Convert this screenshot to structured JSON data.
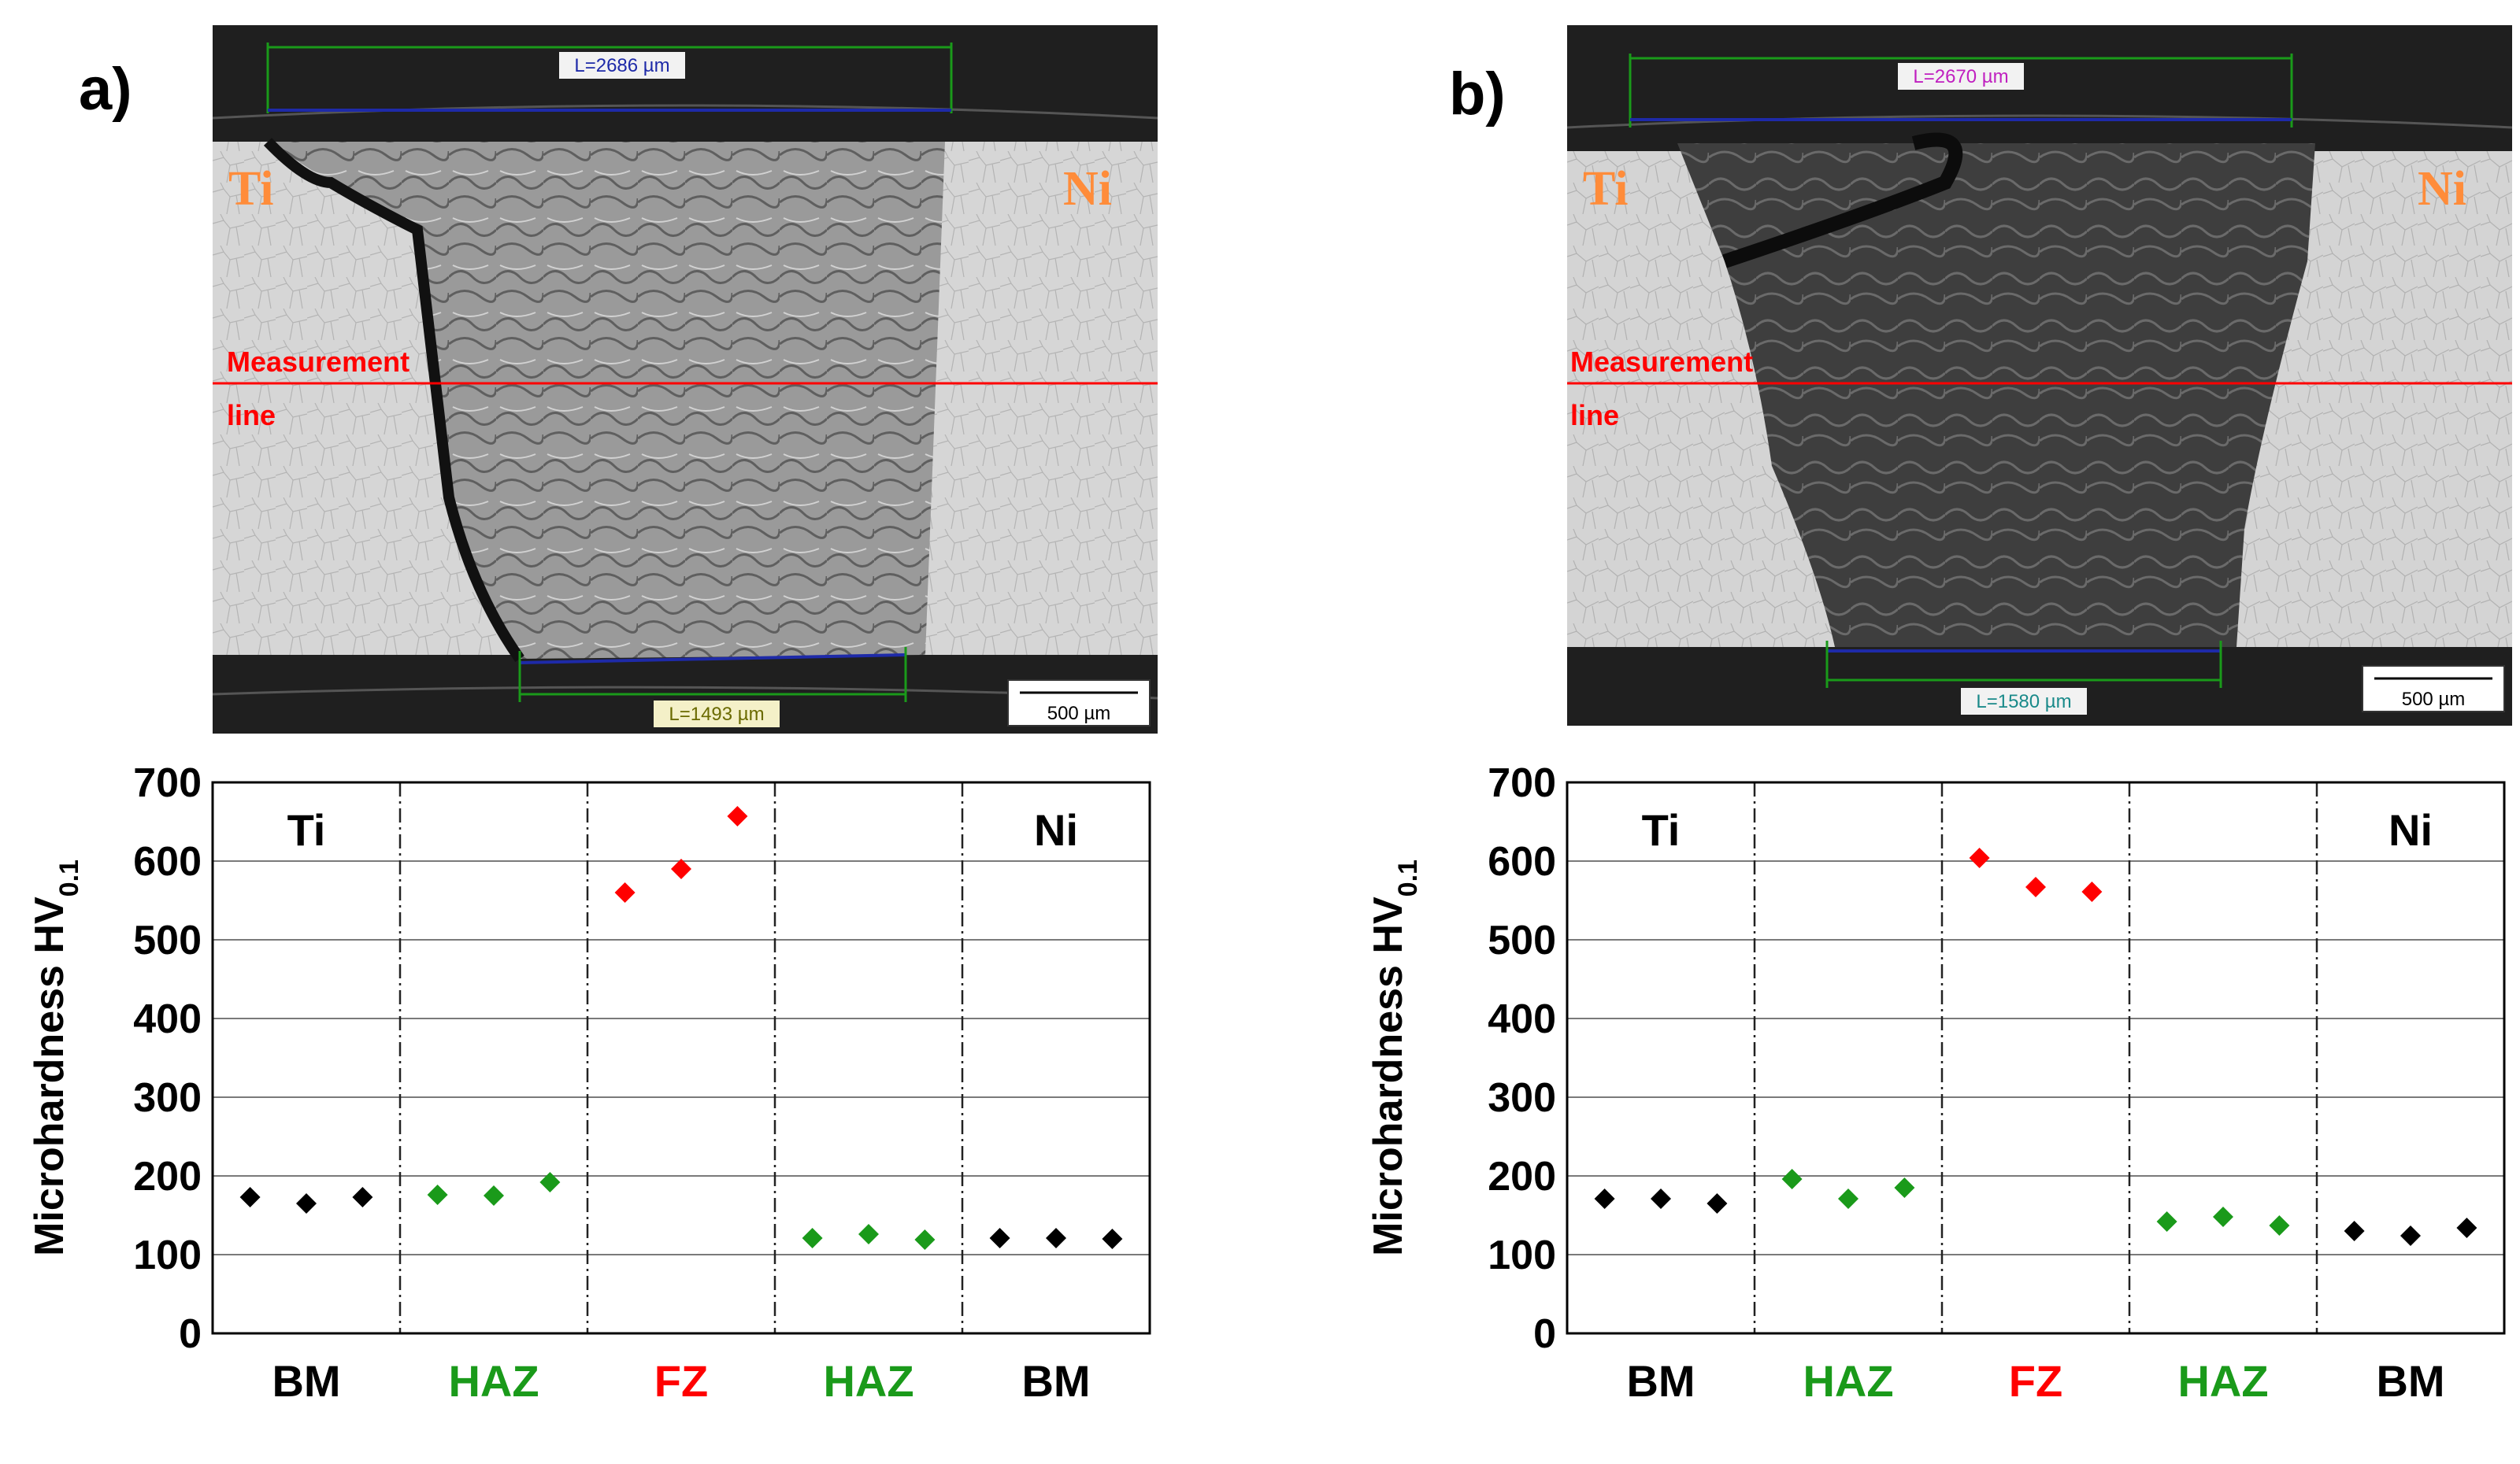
{
  "colors": {
    "bm": "#000000",
    "haz": "#1a9a1a",
    "fz": "#ff0000",
    "measure_line": "#ff0000",
    "metal_label": "#ff8c3a",
    "blue_line": "#1e2aa8",
    "green_line": "#1a9a1a"
  },
  "panels": [
    {
      "label": "a)",
      "micrograph": {
        "left_metal": "Ti",
        "right_metal": "Ni",
        "measurement_label_1": "Measurement",
        "measurement_label_2": "line",
        "top_width": "L=2686 µm",
        "bottom_width": "L=1493 µm",
        "scale_bar": "500 µm"
      }
    },
    {
      "label": "b)",
      "micrograph": {
        "left_metal": "Ti",
        "right_metal": "Ni",
        "measurement_label_1": "Measurement",
        "measurement_label_2": "line",
        "top_width": "L=2670 µm",
        "bottom_width": "L=1580 µm",
        "scale_bar": "500 µm"
      }
    }
  ],
  "chart_data": [
    {
      "type": "scatter",
      "ylabel": "Microhardness HV",
      "ylabel_sub": "0.1",
      "ylim": [
        0,
        700
      ],
      "yticks": [
        "0",
        "100",
        "200",
        "300",
        "400",
        "500",
        "600",
        "700"
      ],
      "grid": true,
      "zones": [
        {
          "label": "BM",
          "color": "bm",
          "corner_label": "Ti"
        },
        {
          "label": "HAZ",
          "color": "haz",
          "corner_label": ""
        },
        {
          "label": "FZ",
          "color": "fz",
          "corner_label": ""
        },
        {
          "label": "HAZ",
          "color": "haz",
          "corner_label": ""
        },
        {
          "label": "BM",
          "color": "bm",
          "corner_label": "Ni"
        }
      ],
      "series": [
        {
          "zone": 0,
          "values": [
            173,
            165,
            173
          ]
        },
        {
          "zone": 1,
          "values": [
            176,
            175,
            192
          ]
        },
        {
          "zone": 2,
          "values": [
            560,
            590,
            657
          ]
        },
        {
          "zone": 3,
          "values": [
            121,
            126,
            119
          ]
        },
        {
          "zone": 4,
          "values": [
            121,
            121,
            120
          ]
        }
      ]
    },
    {
      "type": "scatter",
      "ylabel": "Microhardness HV",
      "ylabel_sub": "0.1",
      "ylim": [
        0,
        700
      ],
      "yticks": [
        "0",
        "100",
        "200",
        "300",
        "400",
        "500",
        "600",
        "700"
      ],
      "grid": true,
      "zones": [
        {
          "label": "BM",
          "color": "bm",
          "corner_label": "Ti"
        },
        {
          "label": "HAZ",
          "color": "haz",
          "corner_label": ""
        },
        {
          "label": "FZ",
          "color": "fz",
          "corner_label": ""
        },
        {
          "label": "HAZ",
          "color": "haz",
          "corner_label": ""
        },
        {
          "label": "BM",
          "color": "bm",
          "corner_label": "Ni"
        }
      ],
      "series": [
        {
          "zone": 0,
          "values": [
            171,
            171,
            165
          ]
        },
        {
          "zone": 1,
          "values": [
            196,
            171,
            185
          ]
        },
        {
          "zone": 2,
          "values": [
            604,
            567,
            561
          ]
        },
        {
          "zone": 3,
          "values": [
            142,
            148,
            137
          ]
        },
        {
          "zone": 4,
          "values": [
            130,
            124,
            134
          ]
        }
      ]
    }
  ]
}
